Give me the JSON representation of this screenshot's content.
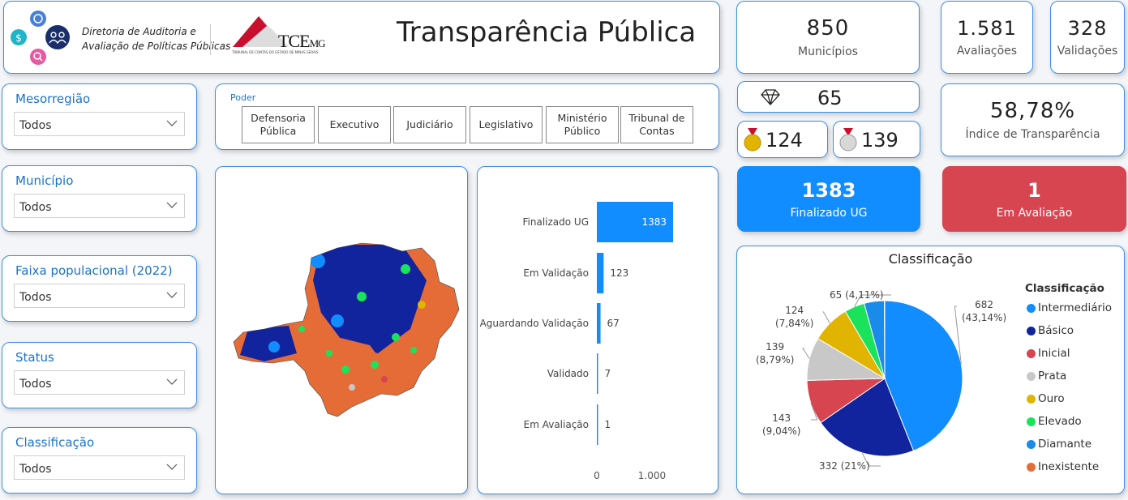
{
  "header": {
    "org_line1": "Diretoria de Auditoria e",
    "org_line2": "Avaliação de Políticas Públicas",
    "logo_text": "TCE",
    "logo_suffix": "MG",
    "logo_subtitle": "TRIBUNAL DE CONTAS DO ESTADO DE MINAS GERAIS",
    "title": "Transparência Pública"
  },
  "kpis": {
    "municipios": {
      "value": "850",
      "label": "Municípios"
    },
    "avaliacoes": {
      "value": "1.581",
      "label": "Avaliações"
    },
    "validacoes": {
      "value": "328",
      "label": "Validações"
    },
    "diamante": {
      "value": "65"
    },
    "ouro": {
      "value": "124"
    },
    "prata": {
      "value": "139"
    },
    "indice": {
      "value": "58,78%",
      "label": "Índice de Transparência"
    },
    "finalizado": {
      "value": "1383",
      "label": "Finalizado UG"
    },
    "em_avaliacao": {
      "value": "1",
      "label": "Em Avaliação"
    }
  },
  "filters": [
    {
      "label": "Mesorregião",
      "value": "Todos"
    },
    {
      "label": "Município",
      "value": "Todos"
    },
    {
      "label": "Faixa populacional (2022)",
      "value": "Todos"
    },
    {
      "label": "Status",
      "value": "Todos"
    },
    {
      "label": "Classificação",
      "value": "Todos"
    }
  ],
  "poder": {
    "title": "Poder",
    "buttons": [
      [
        "Defensoria",
        "Pública"
      ],
      [
        "Executivo"
      ],
      [
        "Judiciário"
      ],
      [
        "Legislativo"
      ],
      [
        "Ministério",
        "Público"
      ],
      [
        "Tribunal de",
        "Contas"
      ]
    ]
  },
  "colors": {
    "accent": "#1a73c9",
    "finalizado_bg": "#118dff",
    "em_avaliacao_bg": "#d64550",
    "bar": "#118dff"
  },
  "chart_data": [
    {
      "type": "bar",
      "orientation": "horizontal",
      "categories": [
        "Finalizado UG",
        "Em Validação",
        "Aguardando Validação",
        "Validado",
        "Em Avaliação"
      ],
      "values": [
        1383,
        123,
        67,
        7,
        1
      ],
      "x_ticks": [
        "0",
        "1.000"
      ],
      "xlim": [
        0,
        1383
      ]
    },
    {
      "type": "pie",
      "title": "Classificação",
      "legend_title": "Classificação",
      "legend_position": "right",
      "slices": [
        {
          "name": "Intermediário",
          "value": 682,
          "label": "682 (43,14%)",
          "color": "#118dff"
        },
        {
          "name": "Básico",
          "value": 332,
          "label": "332 (21%)",
          "color": "#12239e"
        },
        {
          "name": "Inicial",
          "value": 143,
          "label": "143 (9,04%)",
          "color": "#d64550"
        },
        {
          "name": "Prata",
          "value": 139,
          "label": "139 (8,79%)",
          "color": "#c8c8c8"
        },
        {
          "name": "Ouro",
          "value": 124,
          "label": "124 (7,84%)",
          "color": "#e0b400"
        },
        {
          "name": "Elevado",
          "value": 65,
          "label": "65 (4,11%)",
          "color": "#1ae35b"
        },
        {
          "name": "Diamante",
          "value": 65,
          "label": "",
          "color": "#1a8be8"
        },
        {
          "name": "Inexistente",
          "value": 1,
          "label": "",
          "color": "#e66c37"
        }
      ]
    }
  ]
}
